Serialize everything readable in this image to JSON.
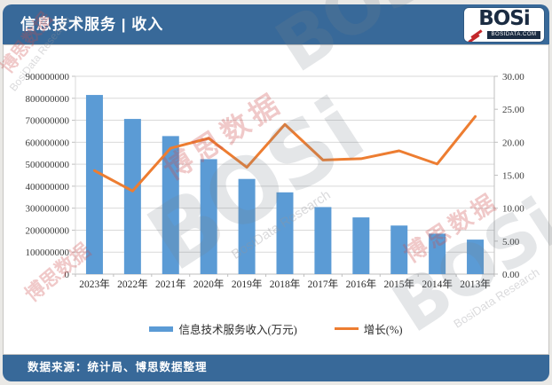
{
  "page": {
    "background": "#eae9e6",
    "accent": "#386999"
  },
  "header": {
    "title": "信息技术服务 | 收入"
  },
  "logo": {
    "name": "BOSi",
    "domain": "BOSIDATA.COM"
  },
  "footer": {
    "source": "数据来源：统计局、博思数据整理"
  },
  "watermark": {
    "cn": "博思数据",
    "logo": "BOSi",
    "en": "BosiData Research",
    "en_short": "BosiData"
  },
  "chart_data": {
    "type": "bar",
    "title": "信息技术服务 | 收入",
    "categories": [
      "2023年",
      "2022年",
      "2021年",
      "2020年",
      "2019年",
      "2018年",
      "2017年",
      "2016年",
      "2015年",
      "2014年",
      "2013年"
    ],
    "series": [
      {
        "name": "信息技术服务收入(万元)",
        "type": "bar",
        "axis": "left",
        "color": "#5b9bd5",
        "values": [
          815000000,
          706000000,
          628000000,
          523000000,
          433000000,
          372000000,
          305000000,
          258000000,
          221000000,
          184000000,
          157000000
        ]
      },
      {
        "name": "增长(%)",
        "type": "line",
        "axis": "right",
        "color": "#ed7d31",
        "values": [
          15.7,
          12.6,
          19.1,
          20.6,
          16.2,
          22.7,
          17.3,
          17.5,
          18.7,
          16.7,
          23.9
        ]
      }
    ],
    "left_axis": {
      "min": 0,
      "max": 900000000,
      "step": 100000000,
      "tick_labels": [
        "0",
        "100000000",
        "200000000",
        "300000000",
        "400000000",
        "500000000",
        "600000000",
        "700000000",
        "800000000",
        "900000000"
      ]
    },
    "right_axis": {
      "min": 0,
      "max": 30,
      "step": 5,
      "tick_labels": [
        "0.00",
        "5.00",
        "10.00",
        "15.00",
        "20.00",
        "25.00",
        "30.00"
      ]
    },
    "grid": true,
    "grid_color": "#d9d9d9",
    "axis_color": "#bfbfbf",
    "legend_position": "bottom"
  }
}
